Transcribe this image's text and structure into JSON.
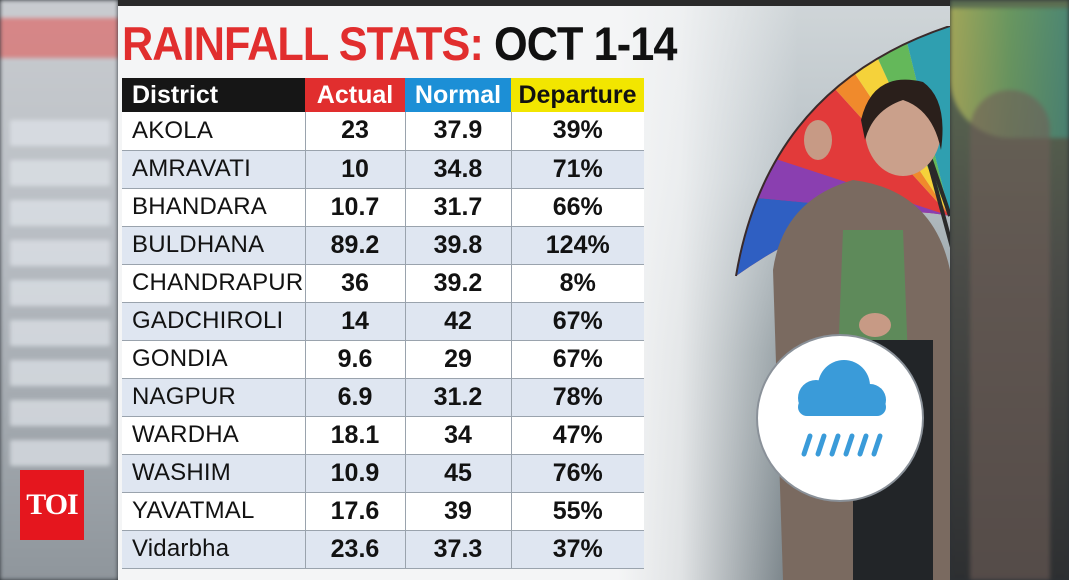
{
  "title": {
    "part1": "RAINFALL STATS:",
    "part2": "OCT 1-14"
  },
  "table": {
    "headers": {
      "district": "District",
      "actual": "Actual",
      "normal": "Normal",
      "departure": "Departure"
    },
    "header_colors": {
      "district": "#161616",
      "actual": "#e12e2e",
      "normal": "#1c8fd6",
      "departure": "#f2e600"
    },
    "rows": [
      {
        "district": "AKOLA",
        "actual": "23",
        "normal": "37.9",
        "departure": "39%"
      },
      {
        "district": "AMRAVATI",
        "actual": "10",
        "normal": "34.8",
        "departure": "71%"
      },
      {
        "district": "BHANDARA",
        "actual": "10.7",
        "normal": "31.7",
        "departure": "66%"
      },
      {
        "district": "BULDHANA",
        "actual": "89.2",
        "normal": "39.8",
        "departure": "124%"
      },
      {
        "district": "CHANDRAPUR",
        "actual": "36",
        "normal": "39.2",
        "departure": "8%"
      },
      {
        "district": "GADCHIROLI",
        "actual": "14",
        "normal": "42",
        "departure": "67%"
      },
      {
        "district": "GONDIA",
        "actual": "9.6",
        "normal": "29",
        "departure": "67%"
      },
      {
        "district": "NAGPUR",
        "actual": "6.9",
        "normal": "31.2",
        "departure": "78%"
      },
      {
        "district": "WARDHA",
        "actual": "18.1",
        "normal": "34",
        "departure": "47%"
      },
      {
        "district": "WASHIM",
        "actual": "10.9",
        "normal": "45",
        "departure": "76%"
      },
      {
        "district": "YAVATMAL",
        "actual": "17.6",
        "normal": "39",
        "departure": "55%"
      },
      {
        "district": "Vidarbha",
        "actual": "23.6",
        "normal": "37.3",
        "departure": "37%"
      }
    ]
  },
  "logo": {
    "text": "TOI",
    "color": "#e5161e"
  },
  "icons": {
    "badge": "rain-cloud-icon",
    "accent_blue": "#3a9bd9"
  }
}
